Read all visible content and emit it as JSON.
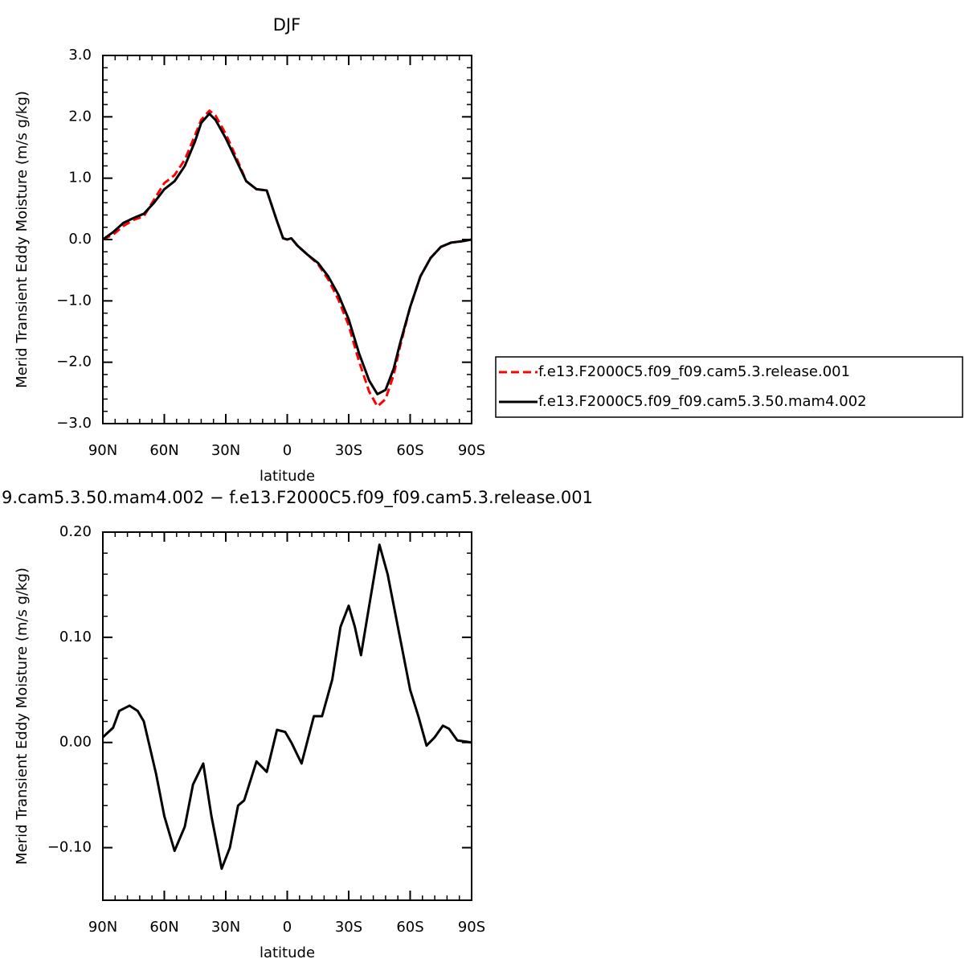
{
  "chart_data": [
    {
      "type": "line",
      "title": "DJF",
      "xlabel": "latitude",
      "ylabel": "Merid Transient Eddy Moisture (m/s g/kg)",
      "xlim": [
        90,
        -90
      ],
      "ylim": [
        -3,
        3
      ],
      "xticks": [
        {
          "value": 90,
          "label": "90N"
        },
        {
          "value": 60,
          "label": "60N"
        },
        {
          "value": 30,
          "label": "30N"
        },
        0,
        {
          "value": -30,
          "label": "30S"
        },
        {
          "value": -60,
          "label": "60S"
        },
        {
          "value": -90,
          "label": "90S"
        }
      ],
      "yticks": [
        {
          "value": -3,
          "label": "−3.0"
        },
        {
          "value": -2,
          "label": "−2.0"
        },
        {
          "value": -1,
          "label": "−1.0"
        },
        {
          "value": 0,
          "label": "0.0"
        },
        {
          "value": 1,
          "label": "1.0"
        },
        {
          "value": 2,
          "label": "2.0"
        },
        {
          "value": 3,
          "label": "3.0"
        }
      ],
      "legend": "outside-right",
      "x": [
        90,
        85,
        80,
        75,
        70,
        65,
        60,
        55,
        50,
        45,
        42,
        38,
        35,
        30,
        25,
        20,
        15,
        10,
        5,
        2,
        0,
        -2,
        -5,
        -10,
        -15,
        -20,
        -25,
        -30,
        -35,
        -40,
        -44,
        -48,
        -52,
        -55,
        -60,
        -65,
        -70,
        -75,
        -80,
        -85,
        -90
      ],
      "series": [
        {
          "name": "f.e13.F2000C5.f09_f09.cam5.3.release.001",
          "color": "#ff0000",
          "style": "dashed",
          "values": [
            0,
            0.08,
            0.22,
            0.32,
            0.38,
            0.65,
            0.92,
            1.05,
            1.3,
            1.7,
            1.95,
            2.1,
            2.02,
            1.72,
            1.35,
            0.95,
            0.82,
            0.8,
            0.3,
            0.02,
            0,
            0.02,
            -0.1,
            -0.25,
            -0.4,
            -0.65,
            -0.98,
            -1.4,
            -1.98,
            -2.48,
            -2.72,
            -2.6,
            -2.2,
            -1.75,
            -1.1,
            -0.6,
            -0.3,
            -0.12,
            -0.05,
            -0.03,
            0
          ]
        },
        {
          "name": "f.e13.F2000C5.f09_f09.cam5.3.50.mam4.002",
          "color": "#000000",
          "style": "solid",
          "values": [
            0,
            0.12,
            0.27,
            0.35,
            0.42,
            0.6,
            0.82,
            0.95,
            1.2,
            1.6,
            1.9,
            2.05,
            1.95,
            1.65,
            1.3,
            0.95,
            0.82,
            0.8,
            0.3,
            0.02,
            0,
            0.02,
            -0.1,
            -0.25,
            -0.38,
            -0.6,
            -0.9,
            -1.3,
            -1.85,
            -2.3,
            -2.52,
            -2.45,
            -2.1,
            -1.7,
            -1.1,
            -0.6,
            -0.3,
            -0.12,
            -0.05,
            -0.03,
            0
          ]
        }
      ]
    },
    {
      "type": "line",
      "title": "9.cam5.3.50.mam4.002 − f.e13.F2000C5.f09_f09.cam5.3.release.001",
      "xlabel": "latitude",
      "ylabel": "Merid Transient Eddy Moisture (m/s g/kg)",
      "xlim": [
        90,
        -90
      ],
      "ylim": [
        -0.15,
        0.2
      ],
      "xticks": [
        {
          "value": 90,
          "label": "90N"
        },
        {
          "value": 60,
          "label": "60N"
        },
        {
          "value": 30,
          "label": "30N"
        },
        0,
        {
          "value": -30,
          "label": "30S"
        },
        {
          "value": -60,
          "label": "60S"
        },
        {
          "value": -90,
          "label": "90S"
        }
      ],
      "yticks": [
        {
          "value": -0.1,
          "label": "−0.10"
        },
        {
          "value": 0,
          "label": "0.00"
        },
        {
          "value": 0.1,
          "label": "0.10"
        },
        {
          "value": 0.2,
          "label": "0.20"
        }
      ],
      "x": [
        90,
        85,
        82,
        77,
        73,
        70,
        64,
        60,
        55,
        50,
        46,
        41,
        37,
        32,
        28,
        24,
        21,
        15,
        10,
        5,
        1,
        -2,
        -7,
        -11,
        -13,
        -17,
        -22,
        -26,
        -30,
        -33,
        -36,
        -40,
        -45,
        -49,
        -54,
        -60,
        -64,
        -68,
        -72,
        -76,
        -79,
        -83,
        -90
      ],
      "series": [
        {
          "color": "#000000",
          "style": "solid",
          "values": [
            0.005,
            0.014,
            0.03,
            0.035,
            0.03,
            0.02,
            -0.03,
            -0.07,
            -0.103,
            -0.08,
            -0.04,
            -0.02,
            -0.07,
            -0.12,
            -0.1,
            -0.06,
            -0.055,
            -0.018,
            -0.028,
            0.012,
            0.01,
            0,
            -0.02,
            0.01,
            0.025,
            0.025,
            0.06,
            0.11,
            0.13,
            0.11,
            0.083,
            0.13,
            0.188,
            0.16,
            0.11,
            0.05,
            0.025,
            -0.003,
            0.005,
            0.016,
            0.013,
            0.002,
            0
          ]
        }
      ]
    }
  ]
}
